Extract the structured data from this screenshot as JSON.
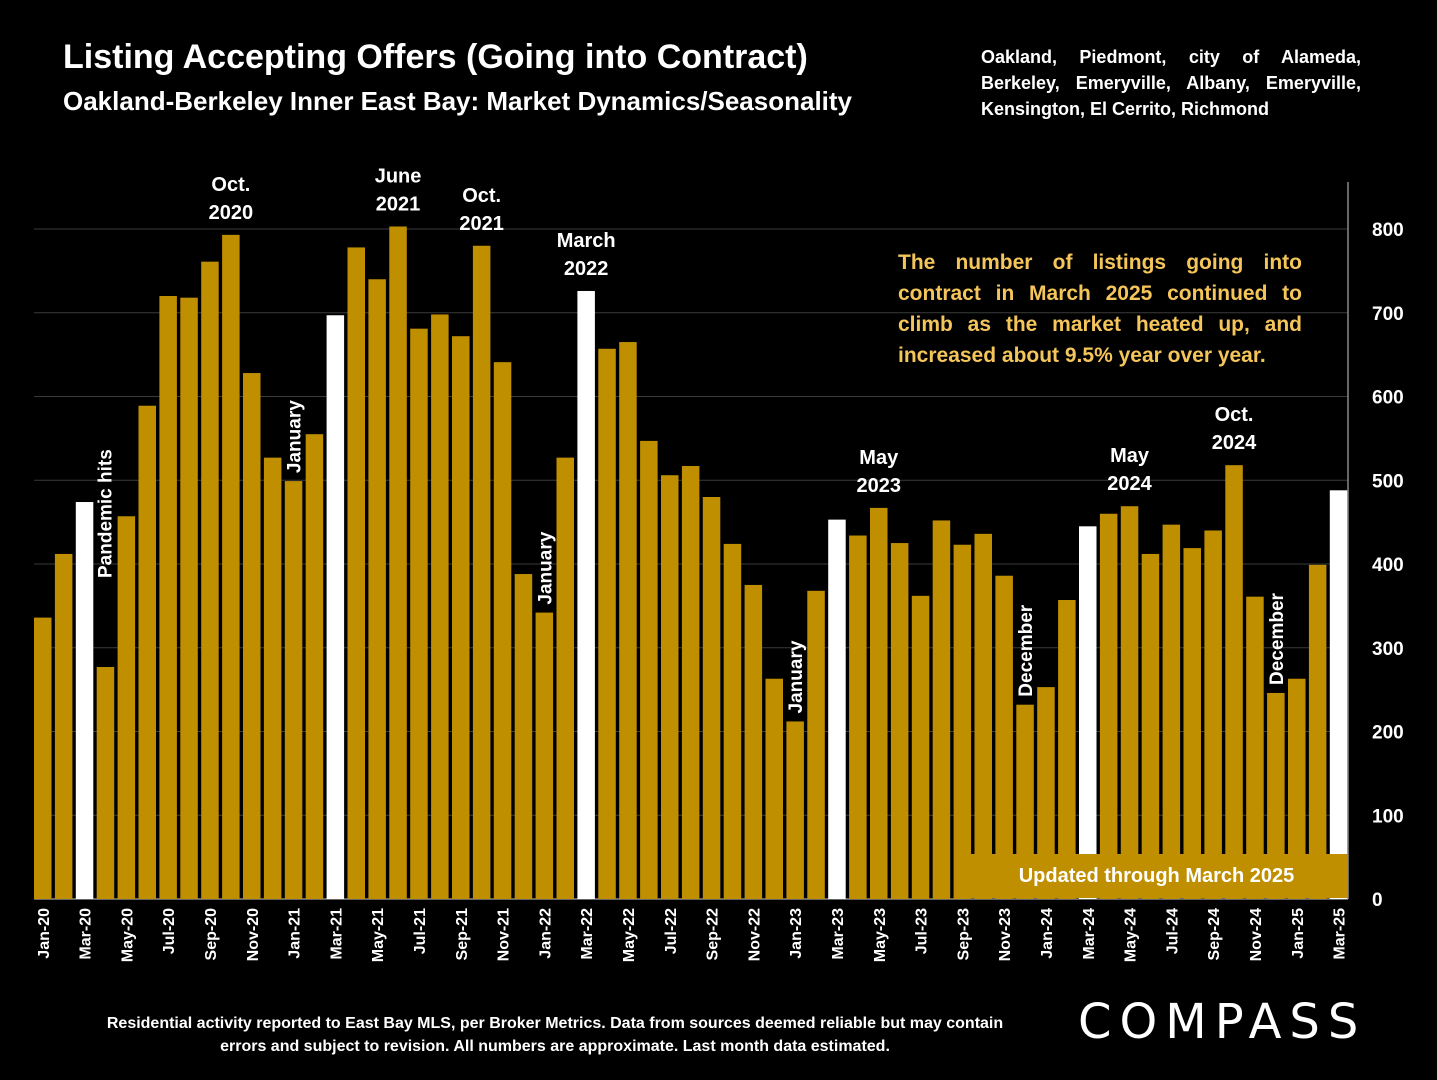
{
  "header": {
    "title": "Listing Accepting Offers (Going into Contract)",
    "subtitle": "Oakland-Berkeley Inner East Bay: Market Dynamics/Seasonality",
    "region": "Oakland, Piedmont, city of Alameda, Berkeley, Emeryville, Albany, Emeryville, Kensington, El Cerrito, Richmond"
  },
  "callout": "The number of listings going into contract in March 2025 continued to climb as the market heated up, and increased about 9.5% year over year.",
  "updated_label": "Updated through March 2025",
  "footnote": "Residential activity reported to East Bay MLS, per Broker Metrics. Data from sources deemed reliable but may contain errors and subject to revision. All numbers are approximate. Last month data estimated.",
  "logo_text": "COMPASS",
  "colors": {
    "bar": "#bf8f00",
    "highlight": "#ffffff",
    "background": "#000000",
    "callout": "#f4c55a"
  },
  "chart_data": {
    "type": "bar",
    "title": "Listing Accepting Offers (Going into Contract)",
    "xlabel": "",
    "ylabel": "",
    "ylim": [
      0,
      800
    ],
    "yticks": [
      "0",
      "100",
      "200",
      "300",
      "400",
      "500",
      "600",
      "700",
      "800"
    ],
    "grid": true,
    "y_axis_side": "right",
    "categories": [
      "Jan-20",
      "Feb-20",
      "Mar-20",
      "Apr-20",
      "May-20",
      "Jun-20",
      "Jul-20",
      "Aug-20",
      "Sep-20",
      "Oct-20",
      "Nov-20",
      "Dec-20",
      "Jan-21",
      "Feb-21",
      "Mar-21",
      "Apr-21",
      "May-21",
      "Jun-21",
      "Jul-21",
      "Aug-21",
      "Sep-21",
      "Oct-21",
      "Nov-21",
      "Dec-21",
      "Jan-22",
      "Feb-22",
      "Mar-22",
      "Apr-22",
      "May-22",
      "Jun-22",
      "Jul-22",
      "Aug-22",
      "Sep-22",
      "Oct-22",
      "Nov-22",
      "Dec-22",
      "Jan-23",
      "Feb-23",
      "Mar-23",
      "Apr-23",
      "May-23",
      "Jun-23",
      "Jul-23",
      "Aug-23",
      "Sep-23",
      "Oct-23",
      "Nov-23",
      "Dec-23",
      "Jan-24",
      "Feb-24",
      "Mar-24",
      "Apr-24",
      "May-24",
      "Jun-24",
      "Jul-24",
      "Aug-24",
      "Sep-24",
      "Oct-24",
      "Nov-24",
      "Dec-24",
      "Jan-25",
      "Feb-25",
      "Mar-25"
    ],
    "values": [
      336,
      412,
      474,
      277,
      457,
      589,
      720,
      718,
      761,
      793,
      628,
      527,
      499,
      555,
      697,
      778,
      740,
      803,
      681,
      698,
      672,
      780,
      641,
      388,
      342,
      527,
      726,
      657,
      665,
      547,
      506,
      517,
      480,
      424,
      375,
      263,
      212,
      368,
      453,
      434,
      467,
      425,
      362,
      452,
      423,
      436,
      386,
      232,
      253,
      357,
      445,
      460,
      469,
      412,
      447,
      419,
      440,
      518,
      361,
      246,
      263,
      399,
      488
    ],
    "highlighted": [
      "Mar-20",
      "Mar-21",
      "Mar-22",
      "Mar-23",
      "Mar-24",
      "Mar-25"
    ],
    "x_tick_labels": [
      "Jan-20",
      "Mar-20",
      "May-20",
      "Jul-20",
      "Sep-20",
      "Nov-20",
      "Jan-21",
      "Mar-21",
      "May-21",
      "Jul-21",
      "Sep-21",
      "Nov-21",
      "Jan-22",
      "Mar-22",
      "May-22",
      "Jul-22",
      "Sep-22",
      "Nov-22",
      "Jan-23",
      "Mar-23",
      "May-23",
      "Jul-23",
      "Sep-23",
      "Nov-23",
      "Jan-24",
      "Mar-24",
      "May-24",
      "Jul-24",
      "Sep-24",
      "Nov-24",
      "Jan-25",
      "Mar-25"
    ],
    "annotations": [
      {
        "category": "Mar-20",
        "text": "Pandemic hits",
        "orientation": "vertical"
      },
      {
        "category": "Oct-20",
        "lines": [
          "Oct.",
          "2020"
        ],
        "orientation": "horizontal"
      },
      {
        "category": "Jan-21",
        "text": "January",
        "orientation": "vertical"
      },
      {
        "category": "Jun-21",
        "lines": [
          "June",
          "2021"
        ],
        "orientation": "horizontal"
      },
      {
        "category": "Oct-21",
        "lines": [
          "Oct.",
          "2021"
        ],
        "orientation": "horizontal"
      },
      {
        "category": "Jan-22",
        "text": "January",
        "orientation": "vertical"
      },
      {
        "category": "Mar-22",
        "lines": [
          "March",
          "2022"
        ],
        "orientation": "horizontal"
      },
      {
        "category": "Jan-23",
        "text": "January",
        "orientation": "vertical"
      },
      {
        "category": "May-23",
        "lines": [
          "May",
          "2023"
        ],
        "orientation": "horizontal"
      },
      {
        "category": "Dec-23",
        "text": "December",
        "orientation": "vertical"
      },
      {
        "category": "May-24",
        "lines": [
          "May",
          "2024"
        ],
        "orientation": "horizontal"
      },
      {
        "category": "Oct-24",
        "lines": [
          "Oct.",
          "2024"
        ],
        "orientation": "horizontal"
      },
      {
        "category": "Dec-24",
        "text": "December",
        "orientation": "vertical"
      }
    ]
  }
}
